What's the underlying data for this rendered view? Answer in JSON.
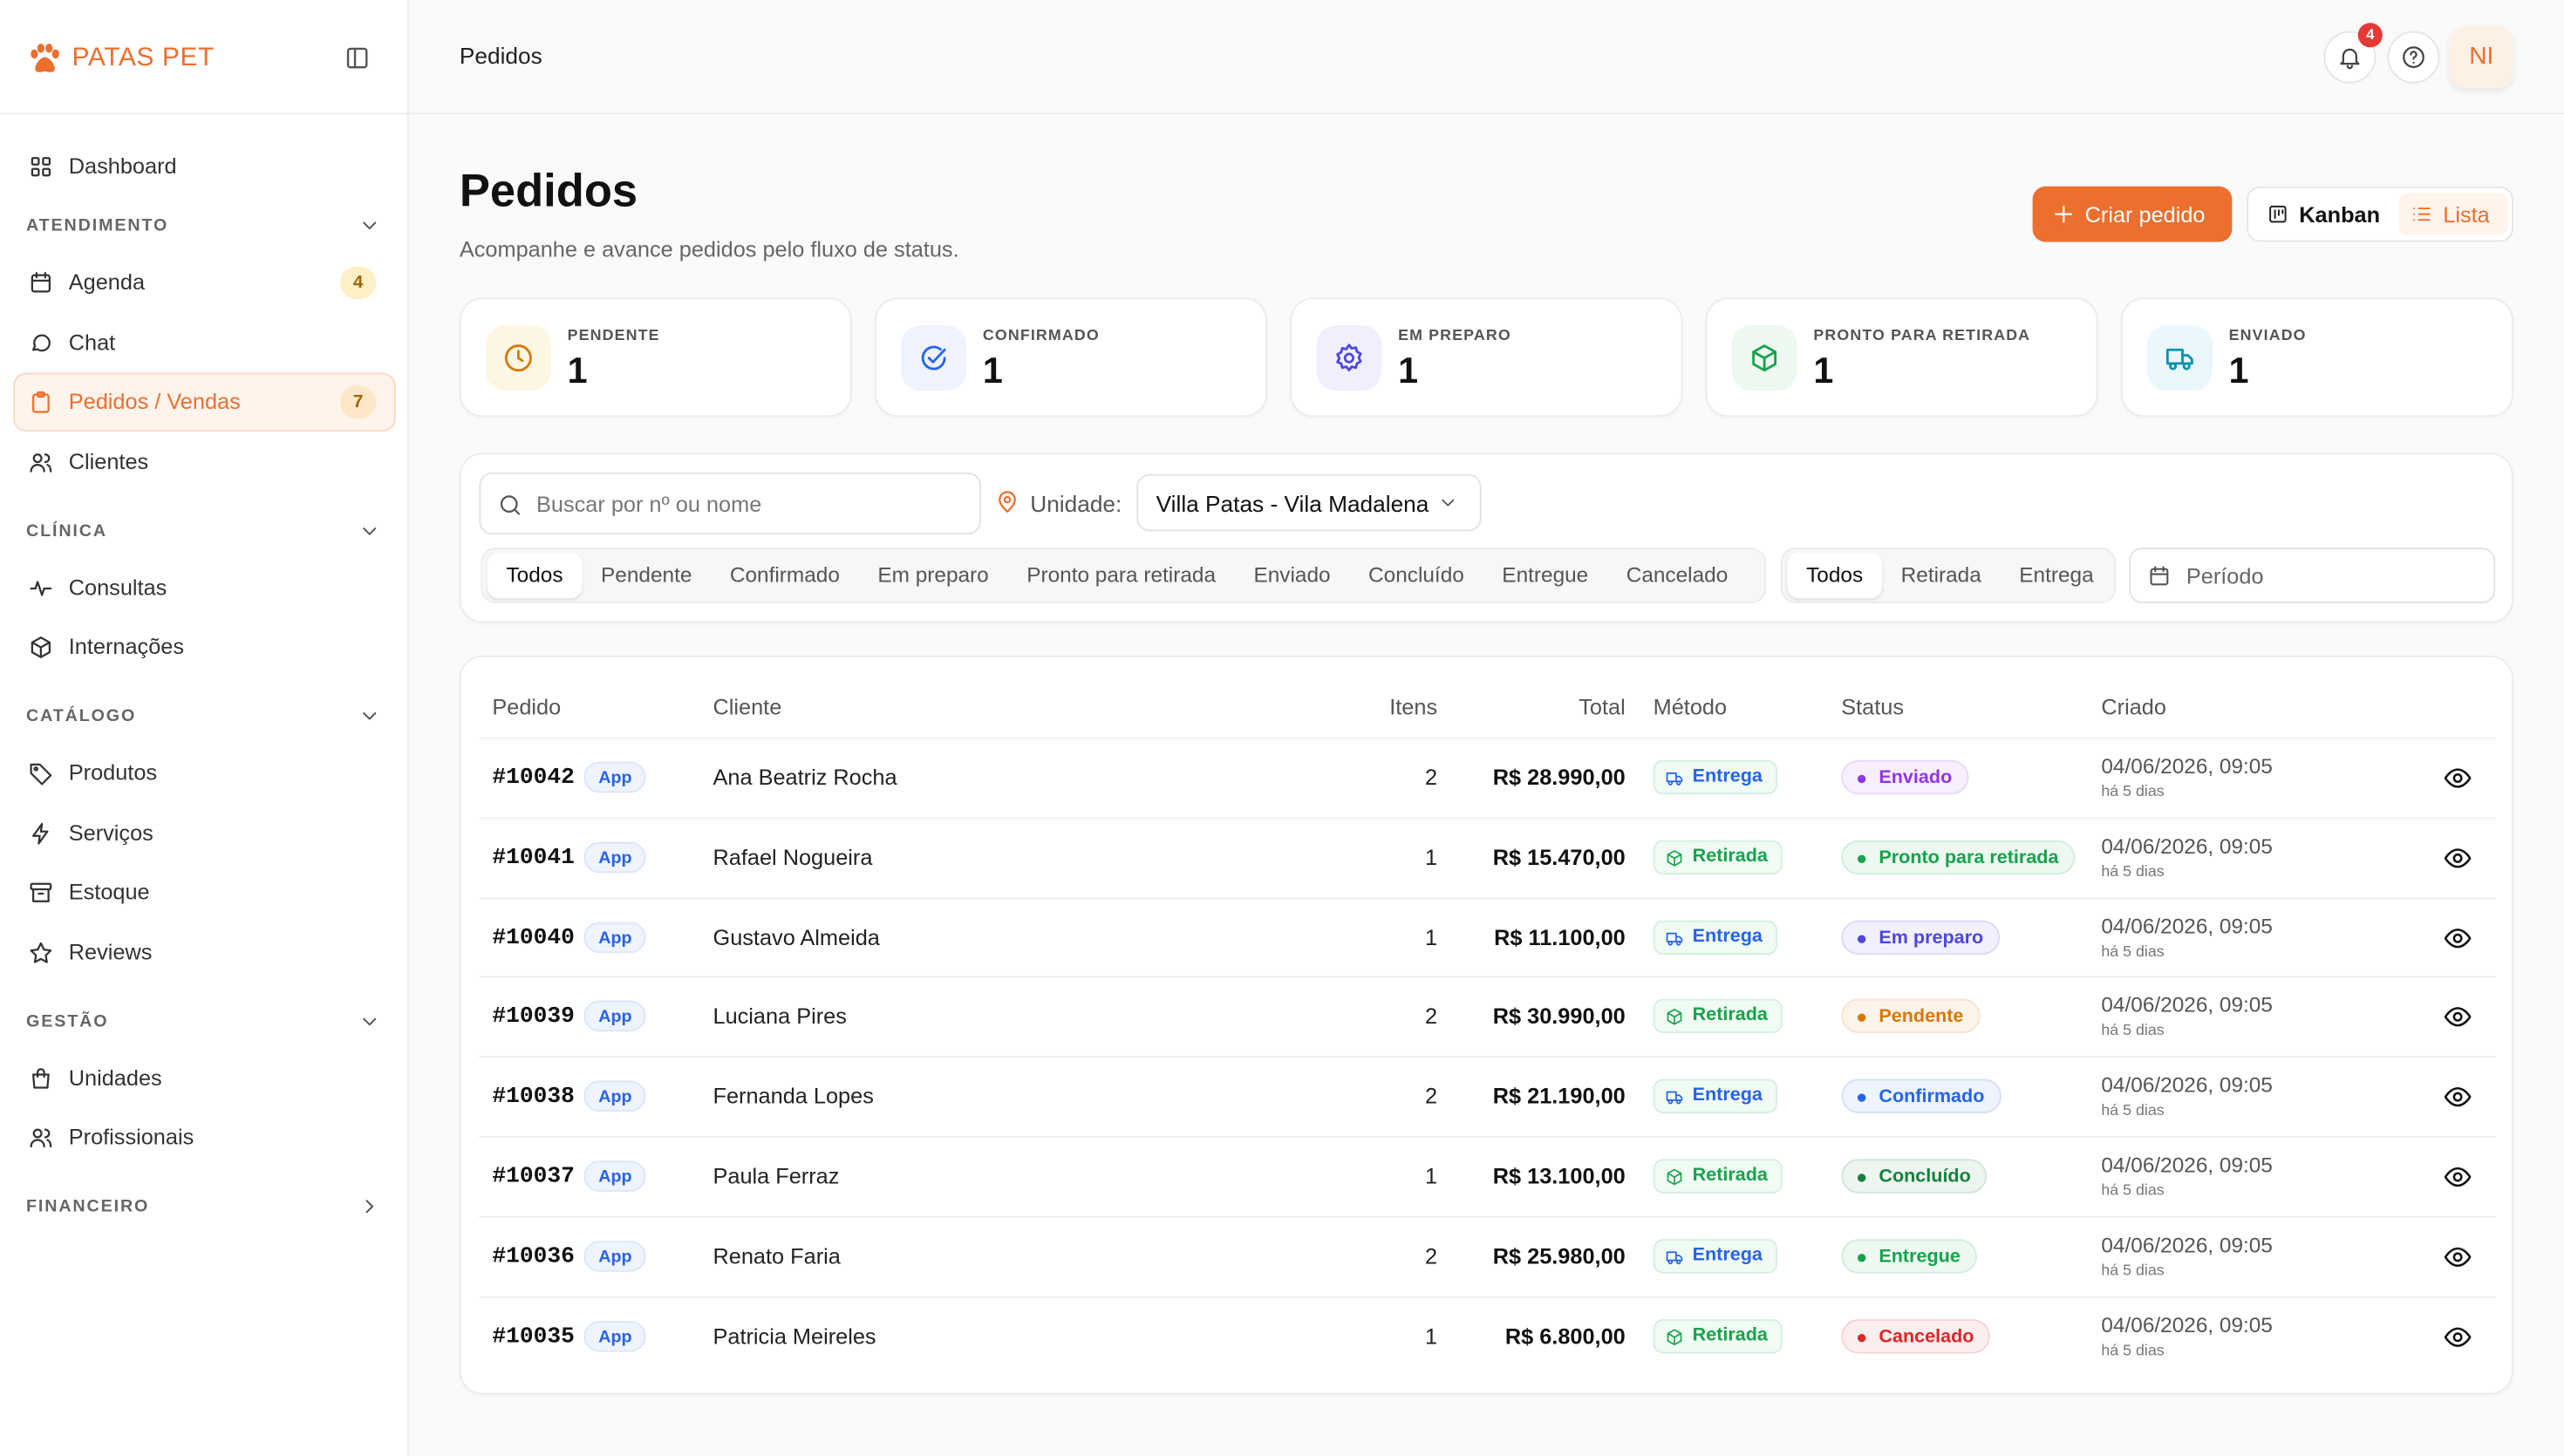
{
  "brand": "PATAS PET",
  "sidebar": {
    "sections": [
      {
        "items": [
          {
            "label": "Dashboard",
            "icon": "grid"
          }
        ]
      },
      {
        "title": "ATENDIMENTO",
        "items": [
          {
            "label": "Agenda",
            "icon": "calendar",
            "badge": 4
          },
          {
            "label": "Chat",
            "icon": "chat"
          },
          {
            "label": "Pedidos / Vendas",
            "icon": "clipboard",
            "badge": 7,
            "active": true
          },
          {
            "label": "Clientes",
            "icon": "users"
          }
        ]
      },
      {
        "title": "CLÍNICA",
        "items": [
          {
            "label": "Consultas",
            "icon": "pulse"
          },
          {
            "label": "Internações",
            "icon": "box"
          }
        ]
      },
      {
        "title": "CATÁLOGO",
        "items": [
          {
            "label": "Produtos",
            "icon": "tag"
          },
          {
            "label": "Serviços",
            "icon": "bolt"
          },
          {
            "label": "Estoque",
            "icon": "archive"
          },
          {
            "label": "Reviews",
            "icon": "star"
          }
        ]
      },
      {
        "title": "GESTÃO",
        "items": [
          {
            "label": "Unidades",
            "icon": "bag"
          },
          {
            "label": "Profissionais",
            "icon": "users"
          }
        ]
      },
      {
        "title": "FINANCEIRO",
        "items": [],
        "collapsed": true
      }
    ]
  },
  "topbar": {
    "breadcrumb": "Pedidos",
    "notifications": 4,
    "avatar": "NI"
  },
  "header": {
    "title": "Pedidos",
    "subtitle": "Acompanhe e avance pedidos pelo fluxo de status.",
    "create_button": "Criar pedido",
    "views": [
      "Kanban",
      "Lista"
    ],
    "active_view": 1
  },
  "stats": [
    {
      "label": "PENDENTE",
      "value": 1,
      "color": "#d97706",
      "bg": "#fdf6e3",
      "icon": "clock"
    },
    {
      "label": "CONFIRMADO",
      "value": 1,
      "color": "#2563eb",
      "bg": "#eef3fd",
      "icon": "check"
    },
    {
      "label": "EM PREPARO",
      "value": 1,
      "color": "#4f46e5",
      "bg": "#f0effd",
      "icon": "gear"
    },
    {
      "label": "PRONTO PARA RETIRADA",
      "value": 1,
      "color": "#16a34a",
      "bg": "#ecf8f0",
      "icon": "box"
    },
    {
      "label": "ENVIADO",
      "value": 1,
      "color": "#0891b2",
      "bg": "#ebf8fb",
      "icon": "truck"
    }
  ],
  "filters": {
    "search_placeholder": "Buscar por nº ou nome",
    "unit_label": "Unidade:",
    "unit": "Villa Patas - Vila Madalena",
    "status_tabs": [
      "Todos",
      "Pendente",
      "Confirmado",
      "Em preparo",
      "Pronto para retirada",
      "Enviado",
      "Concluído",
      "Entregue",
      "Cancelado"
    ],
    "method_tabs": [
      "Todos",
      "Retirada",
      "Entrega"
    ],
    "period_placeholder": "Período"
  },
  "table": {
    "columns": [
      "Pedido",
      "Cliente",
      "Itens",
      "Total",
      "Método",
      "Status",
      "Criado"
    ],
    "rows": [
      {
        "id": "#10042",
        "channel": "App",
        "client": "Ana Beatriz Rocha",
        "items": 2,
        "total": "R$ 28.990,00",
        "method": "Entrega",
        "status": "Enviado",
        "status_color": "#9333ea",
        "created": "04/06/2026, 09:05",
        "ago": "há 5 dias"
      },
      {
        "id": "#10041",
        "channel": "App",
        "client": "Rafael Nogueira",
        "items": 1,
        "total": "R$ 15.470,00",
        "method": "Retirada",
        "status": "Pronto para retirada",
        "status_color": "#16a34a",
        "created": "04/06/2026, 09:05",
        "ago": "há 5 dias"
      },
      {
        "id": "#10040",
        "channel": "App",
        "client": "Gustavo Almeida",
        "items": 1,
        "total": "R$ 11.100,00",
        "method": "Entrega",
        "status": "Em preparo",
        "status_color": "#4f46e5",
        "created": "04/06/2026, 09:05",
        "ago": "há 5 dias"
      },
      {
        "id": "#10039",
        "channel": "App",
        "client": "Luciana Pires",
        "items": 2,
        "total": "R$ 30.990,00",
        "method": "Retirada",
        "status": "Pendente",
        "status_color": "#d97706",
        "created": "04/06/2026, 09:05",
        "ago": "há 5 dias"
      },
      {
        "id": "#10038",
        "channel": "App",
        "client": "Fernanda Lopes",
        "items": 2,
        "total": "R$ 21.190,00",
        "method": "Entrega",
        "status": "Confirmado",
        "status_color": "#2563eb",
        "created": "04/06/2026, 09:05",
        "ago": "há 5 dias"
      },
      {
        "id": "#10037",
        "channel": "App",
        "client": "Paula Ferraz",
        "items": 1,
        "total": "R$ 13.100,00",
        "method": "Retirada",
        "status": "Concluído",
        "status_color": "#15803d",
        "created": "04/06/2026, 09:05",
        "ago": "há 5 dias"
      },
      {
        "id": "#10036",
        "channel": "App",
        "client": "Renato Faria",
        "items": 2,
        "total": "R$ 25.980,00",
        "method": "Entrega",
        "status": "Entregue",
        "status_color": "#16a34a",
        "created": "04/06/2026, 09:05",
        "ago": "há 5 dias"
      },
      {
        "id": "#10035",
        "channel": "App",
        "client": "Patricia Meireles",
        "items": 1,
        "total": "R$ 6.800,00",
        "method": "Retirada",
        "status": "Cancelado",
        "status_color": "#dc2626",
        "created": "04/06/2026, 09:05",
        "ago": "há 5 dias"
      }
    ]
  }
}
